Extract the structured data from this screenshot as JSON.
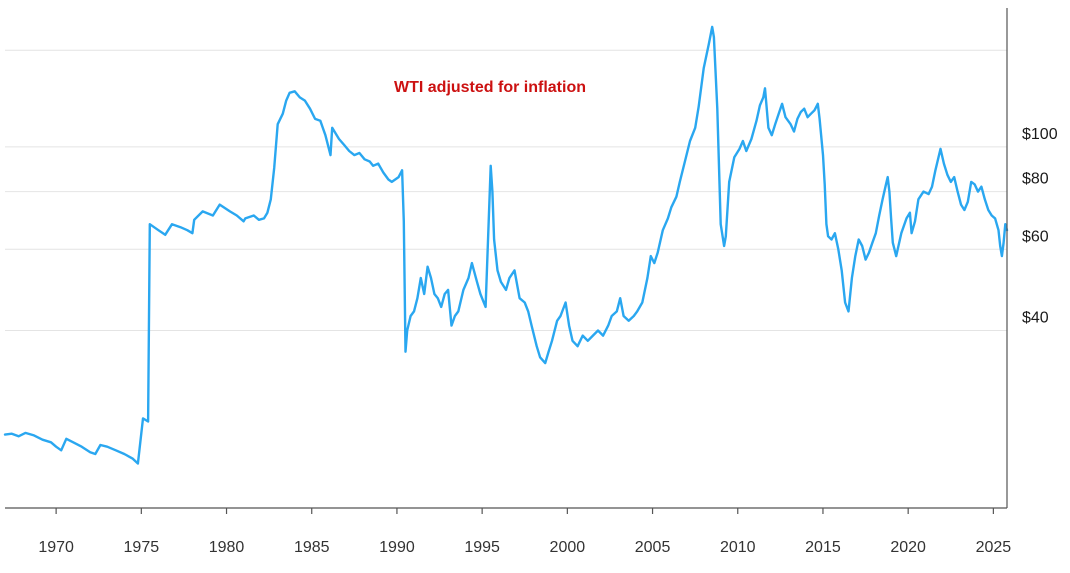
{
  "chart_data": {
    "type": "line",
    "title": "WTI adjusted for inflation",
    "title_color": "#cc1111",
    "line_color": "#2aa7f0",
    "xlabel": "",
    "ylabel": "",
    "y_scale": "log",
    "xlim": [
      1967.0,
      2025.8
    ],
    "ylim": [
      16.5,
      200
    ],
    "grid": true,
    "x_ticks": [
      1970,
      1975,
      1980,
      1985,
      1990,
      1995,
      2000,
      2005,
      2010,
      2015,
      2020,
      2025
    ],
    "y_gridlines": [
      40,
      60,
      80,
      100,
      162
    ],
    "y_ticks": [
      {
        "value": 40,
        "label": "$40"
      },
      {
        "value": 60,
        "label": "$60"
      },
      {
        "value": 80,
        "label": "$80"
      },
      {
        "value": 100,
        "label": "$100"
      }
    ],
    "series": [
      {
        "name": "",
        "points": [
          [
            1967.0,
            23.8
          ],
          [
            1967.4,
            23.9
          ],
          [
            1967.8,
            23.6
          ],
          [
            1968.2,
            24.0
          ],
          [
            1968.7,
            23.7
          ],
          [
            1969.2,
            23.2
          ],
          [
            1969.7,
            22.9
          ],
          [
            1970.0,
            22.4
          ],
          [
            1970.3,
            22.0
          ],
          [
            1970.6,
            23.3
          ],
          [
            1971.0,
            22.9
          ],
          [
            1971.5,
            22.4
          ],
          [
            1972.0,
            21.8
          ],
          [
            1972.3,
            21.6
          ],
          [
            1972.6,
            22.6
          ],
          [
            1973.0,
            22.4
          ],
          [
            1973.5,
            22.0
          ],
          [
            1974.0,
            21.6
          ],
          [
            1974.5,
            21.1
          ],
          [
            1974.8,
            20.6
          ],
          [
            1975.1,
            25.8
          ],
          [
            1975.4,
            25.4
          ],
          [
            1975.5,
            68.0
          ],
          [
            1976.0,
            66.0
          ],
          [
            1976.4,
            64.5
          ],
          [
            1976.8,
            68.0
          ],
          [
            1977.3,
            67.0
          ],
          [
            1977.7,
            66.0
          ],
          [
            1978.0,
            65.0
          ],
          [
            1978.1,
            69.5
          ],
          [
            1978.6,
            72.5
          ],
          [
            1979.2,
            71.0
          ],
          [
            1979.6,
            75.0
          ],
          [
            1980.2,
            72.5
          ],
          [
            1980.6,
            71.0
          ],
          [
            1981.0,
            69.0
          ],
          [
            1981.1,
            70.0
          ],
          [
            1981.6,
            71.0
          ],
          [
            1981.9,
            69.5
          ],
          [
            1982.2,
            70.0
          ],
          [
            1982.4,
            72.0
          ],
          [
            1982.6,
            77.0
          ],
          [
            1982.8,
            90.0
          ],
          [
            1983.0,
            112.0
          ],
          [
            1983.3,
            118.0
          ],
          [
            1983.5,
            126.0
          ],
          [
            1983.7,
            131.0
          ],
          [
            1984.0,
            132.0
          ],
          [
            1984.3,
            128.0
          ],
          [
            1984.6,
            126.0
          ],
          [
            1984.9,
            121.0
          ],
          [
            1985.2,
            115.0
          ],
          [
            1985.5,
            114.0
          ],
          [
            1985.8,
            106.0
          ],
          [
            1986.1,
            96.0
          ],
          [
            1986.2,
            110.0
          ],
          [
            1986.6,
            104.0
          ],
          [
            1986.9,
            101.0
          ],
          [
            1987.2,
            98.0
          ],
          [
            1987.5,
            96.0
          ],
          [
            1987.8,
            97.0
          ],
          [
            1988.1,
            94.0
          ],
          [
            1988.4,
            93.0
          ],
          [
            1988.6,
            91.0
          ],
          [
            1988.9,
            92.0
          ],
          [
            1989.2,
            88.0
          ],
          [
            1989.5,
            85.0
          ],
          [
            1989.7,
            84.0
          ],
          [
            1989.9,
            85.0
          ],
          [
            1990.1,
            86.0
          ],
          [
            1990.3,
            89.0
          ],
          [
            1990.4,
            69.0
          ],
          [
            1990.5,
            36.0
          ],
          [
            1990.6,
            40.0
          ],
          [
            1990.8,
            43.0
          ],
          [
            1991.0,
            44.0
          ],
          [
            1991.2,
            47.0
          ],
          [
            1991.4,
            52.0
          ],
          [
            1991.6,
            48.0
          ],
          [
            1991.8,
            55.0
          ],
          [
            1992.0,
            52.0
          ],
          [
            1992.2,
            48.0
          ],
          [
            1992.4,
            47.0
          ],
          [
            1992.6,
            45.0
          ],
          [
            1992.8,
            48.0
          ],
          [
            1993.0,
            49.0
          ],
          [
            1993.2,
            41.0
          ],
          [
            1993.4,
            43.0
          ],
          [
            1993.6,
            44.0
          ],
          [
            1993.9,
            49.0
          ],
          [
            1994.2,
            52.0
          ],
          [
            1994.4,
            56.0
          ],
          [
            1994.7,
            51.0
          ],
          [
            1994.9,
            48.0
          ],
          [
            1995.2,
            45.0
          ],
          [
            1995.5,
            91.0
          ],
          [
            1995.6,
            80.0
          ],
          [
            1995.7,
            63.0
          ],
          [
            1995.9,
            54.0
          ],
          [
            1996.1,
            51.0
          ],
          [
            1996.4,
            49.0
          ],
          [
            1996.6,
            52.0
          ],
          [
            1996.9,
            54.0
          ],
          [
            1997.2,
            47.0
          ],
          [
            1997.5,
            46.0
          ],
          [
            1997.7,
            44.0
          ],
          [
            1997.9,
            41.0
          ],
          [
            1998.2,
            37.0
          ],
          [
            1998.4,
            35.0
          ],
          [
            1998.7,
            34.0
          ],
          [
            1998.9,
            36.0
          ],
          [
            1999.1,
            38.0
          ],
          [
            1999.4,
            42.0
          ],
          [
            1999.6,
            43.0
          ],
          [
            1999.9,
            46.0
          ],
          [
            2000.1,
            41.0
          ],
          [
            2000.3,
            38.0
          ],
          [
            2000.6,
            37.0
          ],
          [
            2000.9,
            39.0
          ],
          [
            2001.2,
            38.0
          ],
          [
            2001.5,
            39.0
          ],
          [
            2001.8,
            40.0
          ],
          [
            2002.1,
            39.0
          ],
          [
            2002.4,
            41.0
          ],
          [
            2002.6,
            43.0
          ],
          [
            2002.9,
            44.0
          ],
          [
            2003.1,
            47.0
          ],
          [
            2003.3,
            43.0
          ],
          [
            2003.6,
            42.0
          ],
          [
            2003.9,
            43.0
          ],
          [
            2004.1,
            44.0
          ],
          [
            2004.4,
            46.0
          ],
          [
            2004.7,
            52.0
          ],
          [
            2004.9,
            58.0
          ],
          [
            2005.1,
            56.0
          ],
          [
            2005.3,
            59.0
          ],
          [
            2005.6,
            66.0
          ],
          [
            2005.9,
            70.0
          ],
          [
            2006.1,
            74.0
          ],
          [
            2006.4,
            78.0
          ],
          [
            2006.6,
            84.0
          ],
          [
            2006.9,
            93.0
          ],
          [
            2007.2,
            103.0
          ],
          [
            2007.5,
            110.0
          ],
          [
            2007.7,
            122.0
          ],
          [
            2008.0,
            148.0
          ],
          [
            2008.3,
            167.0
          ],
          [
            2008.5,
            182.0
          ],
          [
            2008.6,
            173.0
          ],
          [
            2008.8,
            121.0
          ],
          [
            2009.0,
            68.0
          ],
          [
            2009.2,
            61.0
          ],
          [
            2009.3,
            64.0
          ],
          [
            2009.5,
            84.0
          ],
          [
            2009.8,
            95.0
          ],
          [
            2010.1,
            99.0
          ],
          [
            2010.3,
            103.0
          ],
          [
            2010.5,
            98.0
          ],
          [
            2010.8,
            104.0
          ],
          [
            2011.1,
            114.0
          ],
          [
            2011.3,
            123.0
          ],
          [
            2011.5,
            128.0
          ],
          [
            2011.6,
            134.0
          ],
          [
            2011.8,
            110.0
          ],
          [
            2012.0,
            106.0
          ],
          [
            2012.2,
            112.0
          ],
          [
            2012.4,
            118.0
          ],
          [
            2012.6,
            124.0
          ],
          [
            2012.8,
            116.0
          ],
          [
            2013.1,
            112.0
          ],
          [
            2013.3,
            108.0
          ],
          [
            2013.5,
            115.0
          ],
          [
            2013.7,
            119.0
          ],
          [
            2013.9,
            121.0
          ],
          [
            2014.1,
            116.0
          ],
          [
            2014.3,
            118.0
          ],
          [
            2014.5,
            120.0
          ],
          [
            2014.7,
            124.0
          ],
          [
            2014.8,
            115.0
          ],
          [
            2015.0,
            96.0
          ],
          [
            2015.1,
            83.0
          ],
          [
            2015.2,
            68.0
          ],
          [
            2015.3,
            64.0
          ],
          [
            2015.5,
            63.0
          ],
          [
            2015.7,
            65.0
          ],
          [
            2015.9,
            60.0
          ],
          [
            2016.1,
            54.0
          ],
          [
            2016.3,
            46.0
          ],
          [
            2016.5,
            44.0
          ],
          [
            2016.7,
            52.0
          ],
          [
            2016.9,
            58.0
          ],
          [
            2017.1,
            63.0
          ],
          [
            2017.3,
            61.0
          ],
          [
            2017.5,
            57.0
          ],
          [
            2017.7,
            59.0
          ],
          [
            2017.9,
            62.0
          ],
          [
            2018.1,
            65.0
          ],
          [
            2018.3,
            71.0
          ],
          [
            2018.5,
            77.0
          ],
          [
            2018.7,
            83.0
          ],
          [
            2018.8,
            86.0
          ],
          [
            2018.9,
            80.0
          ],
          [
            2019.0,
            70.0
          ],
          [
            2019.1,
            62.0
          ],
          [
            2019.3,
            58.0
          ],
          [
            2019.6,
            65.0
          ],
          [
            2019.9,
            70.0
          ],
          [
            2020.1,
            72.0
          ],
          [
            2020.2,
            65.0
          ],
          [
            2020.4,
            69.0
          ],
          [
            2020.6,
            77.0
          ],
          [
            2020.9,
            80.0
          ],
          [
            2021.2,
            79.0
          ],
          [
            2021.4,
            82.0
          ],
          [
            2021.6,
            89.0
          ],
          [
            2021.9,
            99.0
          ],
          [
            2022.1,
            92.0
          ],
          [
            2022.3,
            87.0
          ],
          [
            2022.5,
            84.0
          ],
          [
            2022.7,
            86.0
          ],
          [
            2022.9,
            80.0
          ],
          [
            2023.1,
            75.0
          ],
          [
            2023.3,
            73.0
          ],
          [
            2023.5,
            76.0
          ],
          [
            2023.7,
            84.0
          ],
          [
            2023.9,
            83.0
          ],
          [
            2024.1,
            80.0
          ],
          [
            2024.3,
            82.0
          ],
          [
            2024.5,
            77.0
          ],
          [
            2024.7,
            73.0
          ],
          [
            2024.9,
            71.0
          ],
          [
            2025.1,
            70.0
          ],
          [
            2025.3,
            66.0
          ],
          [
            2025.4,
            61.0
          ],
          [
            2025.5,
            58.0
          ],
          [
            2025.6,
            62.0
          ],
          [
            2025.7,
            68.0
          ],
          [
            2025.8,
            66.0
          ]
        ]
      }
    ]
  }
}
